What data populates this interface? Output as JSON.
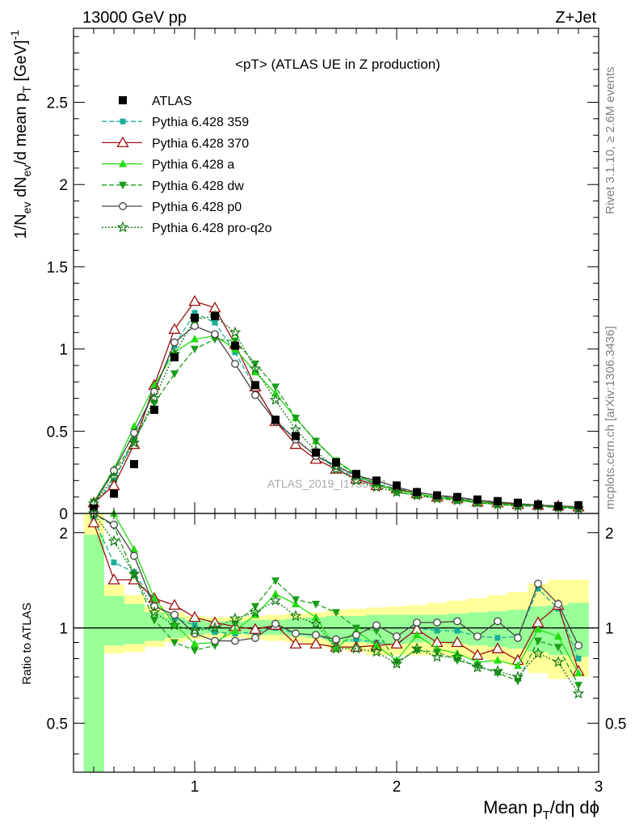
{
  "header": {
    "left_label": "13000 GeV pp",
    "right_label": "Z+Jet"
  },
  "side_labels": {
    "rivet": "Rivet 3.1.10, ≥ 2.6M events",
    "mcplots": "mcplots.cern.ch [arXiv:1306.3436]"
  },
  "watermark": "ATLAS_2019_I1736531",
  "colors": {
    "data": "#000000",
    "p359": "#1aaf98",
    "p370": "#9b1111",
    "pa": "#22dd11",
    "pdw": "#1a9e1a",
    "pp0": "#444444",
    "pq2o": "#127712",
    "band_green": "#99ff99",
    "band_yellow": "#ffff99"
  },
  "chart_data": [
    {
      "type": "line",
      "title": "<pT> (ATLAS UE in Z production)",
      "xlabel": "Mean p_T/dη dφ",
      "ylabel": "1/N_ev dN_ev/d mean p_T [GeV]^-1",
      "xlim": [
        0.4,
        3.0
      ],
      "ylim": [
        0,
        2.95
      ],
      "x_ticks": [
        1,
        2,
        3
      ],
      "y_ticks": [
        0,
        0.5,
        1,
        1.5,
        2,
        2.5
      ],
      "x_tick_labels": [
        "1",
        "2",
        "3"
      ],
      "y_tick_labels": [
        "0",
        "0.5",
        "1",
        "1.5",
        "2",
        "2.5"
      ],
      "legend_placement": "top-left",
      "x": [
        0.5,
        0.6,
        0.7,
        0.8,
        0.9,
        1.0,
        1.1,
        1.2,
        1.3,
        1.4,
        1.5,
        1.6,
        1.7,
        1.8,
        1.9,
        2.0,
        2.1,
        2.2,
        2.3,
        2.4,
        2.5,
        2.6,
        2.7,
        2.8,
        2.9
      ],
      "series": [
        {
          "key": "data",
          "name": "ATLAS",
          "marker": "square",
          "line": "none",
          "values": [
            0.03,
            0.12,
            0.3,
            0.63,
            0.95,
            1.19,
            1.2,
            1.02,
            0.78,
            0.57,
            0.47,
            0.37,
            0.31,
            0.24,
            0.2,
            0.17,
            0.13,
            0.11,
            0.1,
            0.085,
            0.075,
            0.065,
            0.055,
            0.045,
            0.05
          ]
        },
        {
          "key": "p359",
          "name": "Pythia 6.428 359",
          "marker": "small-square",
          "line": "dashed",
          "values": [
            0.05,
            0.2,
            0.45,
            0.75,
            1.02,
            1.22,
            1.16,
            0.98,
            0.76,
            0.57,
            0.45,
            0.35,
            0.28,
            0.22,
            0.18,
            0.15,
            0.13,
            0.11,
            0.09,
            0.08,
            0.07,
            0.06,
            0.05,
            0.045,
            0.04
          ]
        },
        {
          "key": "p370",
          "name": "Pythia 6.428 370",
          "marker": "open-triangle",
          "line": "solid",
          "values": [
            0.065,
            0.17,
            0.42,
            0.78,
            1.12,
            1.29,
            1.25,
            1.03,
            0.77,
            0.56,
            0.42,
            0.33,
            0.27,
            0.21,
            0.17,
            0.15,
            0.12,
            0.1,
            0.09,
            0.07,
            0.065,
            0.055,
            0.05,
            0.045,
            0.04
          ]
        },
        {
          "key": "pa",
          "name": "Pythia 6.428 a",
          "marker": "filled-triangle",
          "line": "solid",
          "values": [
            0.07,
            0.27,
            0.53,
            0.78,
            0.98,
            1.06,
            1.08,
            1.0,
            0.86,
            0.73,
            0.58,
            0.44,
            0.32,
            0.24,
            0.18,
            0.14,
            0.12,
            0.1,
            0.085,
            0.07,
            0.06,
            0.05,
            0.05,
            0.04,
            0.035
          ]
        },
        {
          "key": "pdw",
          "name": "Pythia 6.428 dw",
          "marker": "filled-inverted-triangle",
          "line": "dashed",
          "values": [
            0.07,
            0.25,
            0.44,
            0.67,
            0.85,
            1.0,
            1.06,
            1.05,
            0.91,
            0.77,
            0.58,
            0.44,
            0.32,
            0.23,
            0.18,
            0.13,
            0.11,
            0.095,
            0.08,
            0.065,
            0.055,
            0.045,
            0.045,
            0.035,
            0.03
          ]
        },
        {
          "key": "pp0",
          "name": "Pythia 6.428 p0",
          "marker": "open-circle",
          "line": "solid",
          "values": [
            0.06,
            0.26,
            0.49,
            0.74,
            1.04,
            1.14,
            1.09,
            0.91,
            0.72,
            0.56,
            0.45,
            0.35,
            0.29,
            0.23,
            0.2,
            0.16,
            0.13,
            0.11,
            0.1,
            0.08,
            0.07,
            0.06,
            0.05,
            0.045,
            0.04
          ]
        },
        {
          "key": "pq2o",
          "name": "Pythia 6.428 pro-q2o",
          "marker": "star",
          "line": "dotted",
          "values": [
            0.06,
            0.22,
            0.43,
            0.7,
            0.97,
            1.18,
            1.2,
            1.1,
            0.88,
            0.69,
            0.51,
            0.38,
            0.27,
            0.2,
            0.16,
            0.13,
            0.11,
            0.09,
            0.08,
            0.065,
            0.055,
            0.045,
            0.045,
            0.035,
            0.03
          ]
        }
      ]
    },
    {
      "type": "line",
      "ylabel": "Ratio to ATLAS",
      "xlabel": "Mean p_T/dη dφ",
      "xlim": [
        0.4,
        3.0
      ],
      "ylim": [
        0.35,
        2.3
      ],
      "reference_line": 1,
      "y_ticks": [
        0.5,
        1,
        2
      ],
      "y_tick_labels": [
        "0.5",
        "1",
        "2"
      ],
      "bin_edges": [
        0.45,
        0.55,
        0.65,
        0.75,
        0.85,
        0.95,
        1.05,
        1.15,
        1.25,
        1.35,
        1.45,
        1.55,
        1.65,
        1.75,
        1.85,
        1.95,
        2.05,
        2.15,
        2.25,
        2.35,
        2.45,
        2.55,
        2.65,
        2.75,
        2.85,
        2.95
      ],
      "band_green_lo": [
        0.35,
        0.88,
        0.89,
        0.91,
        0.93,
        0.95,
        0.96,
        0.96,
        0.95,
        0.95,
        0.94,
        0.93,
        0.91,
        0.9,
        0.89,
        0.89,
        0.9,
        0.9,
        0.89,
        0.88,
        0.87,
        0.86,
        0.84,
        0.82,
        0.81
      ],
      "band_green_hi": [
        1.97,
        1.26,
        1.19,
        1.12,
        1.08,
        1.06,
        1.05,
        1.05,
        1.06,
        1.06,
        1.07,
        1.08,
        1.09,
        1.09,
        1.1,
        1.1,
        1.1,
        1.1,
        1.11,
        1.12,
        1.13,
        1.14,
        1.17,
        1.18,
        1.2
      ],
      "band_yellow_lo": [
        0.35,
        0.83,
        0.84,
        0.87,
        0.9,
        0.92,
        0.93,
        0.93,
        0.92,
        0.91,
        0.9,
        0.88,
        0.86,
        0.84,
        0.82,
        0.82,
        0.82,
        0.82,
        0.81,
        0.8,
        0.78,
        0.76,
        0.72,
        0.69,
        0.7
      ],
      "band_yellow_hi": [
        2.3,
        1.37,
        1.27,
        1.17,
        1.12,
        1.09,
        1.08,
        1.08,
        1.09,
        1.1,
        1.11,
        1.12,
        1.14,
        1.15,
        1.16,
        1.17,
        1.18,
        1.2,
        1.22,
        1.24,
        1.27,
        1.3,
        1.38,
        1.42,
        1.42
      ],
      "series": [
        {
          "key": "p359",
          "values": [
            2.2,
            1.61,
            1.5,
            1.19,
            1.07,
            1.02,
            0.97,
            0.96,
            0.97,
            1.0,
            0.96,
            0.95,
            0.9,
            0.92,
            0.9,
            0.88,
            1.0,
            0.98,
            0.98,
            0.94,
            0.93,
            0.94,
            1.33,
            1.15,
            0.8
          ]
        },
        {
          "key": "p370",
          "values": [
            2.15,
            1.42,
            1.42,
            1.24,
            1.18,
            1.08,
            1.04,
            1.01,
            0.99,
            1.02,
            0.89,
            0.89,
            0.87,
            0.87,
            0.88,
            0.89,
            0.99,
            0.9,
            0.9,
            0.82,
            0.86,
            0.79,
            1.04,
            1.18,
            0.73
          ]
        },
        {
          "key": "pa",
          "values": [
            2.3,
            2.3,
            1.77,
            1.24,
            1.03,
            0.89,
            0.9,
            0.98,
            1.1,
            1.28,
            1.19,
            1.08,
            0.86,
            0.98,
            0.88,
            0.79,
            0.95,
            0.86,
            0.83,
            0.78,
            0.79,
            0.76,
            0.99,
            0.94,
            0.72
          ]
        },
        {
          "key": "pdw",
          "values": [
            2.3,
            2.1,
            1.47,
            1.06,
            0.9,
            0.85,
            0.88,
            1.03,
            1.17,
            1.41,
            1.23,
            1.19,
            1.12,
            1.0,
            0.98,
            0.78,
            0.85,
            0.84,
            0.79,
            0.76,
            0.72,
            0.68,
            0.91,
            0.87,
            0.66
          ]
        },
        {
          "key": "pp0",
          "values": [
            2.3,
            2.12,
            1.69,
            1.17,
            1.1,
            0.96,
            0.91,
            0.91,
            0.93,
            1.03,
            0.96,
            0.95,
            0.92,
            0.95,
            1.02,
            0.94,
            1.04,
            1.04,
            1.05,
            0.94,
            1.05,
            0.93,
            1.38,
            1.19,
            0.88
          ]
        },
        {
          "key": "pq2o",
          "values": [
            2.3,
            1.88,
            1.48,
            1.12,
            1.02,
            0.98,
            1.0,
            1.07,
            1.12,
            1.22,
            1.09,
            1.03,
            0.86,
            0.86,
            0.84,
            0.77,
            0.86,
            0.81,
            0.81,
            0.75,
            0.73,
            0.7,
            0.83,
            0.78,
            0.62
          ]
        }
      ]
    }
  ]
}
